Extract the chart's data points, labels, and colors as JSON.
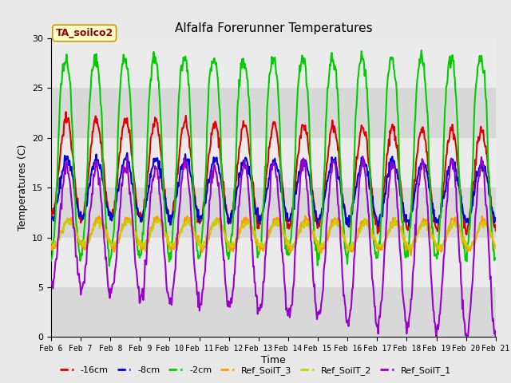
{
  "title": "Alfalfa Forerunner Temperatures",
  "ylabel": "Temperatures (C)",
  "xlabel": "Time",
  "annotation": "TA_soilco2",
  "ylim": [
    0,
    30
  ],
  "fig_bg_color": "#e8e8e8",
  "plot_bg_color": "#e8e8e8",
  "band1_color": "#d8d8d8",
  "band2_color": "#ebebeb",
  "series_colors": {
    "-16cm": "#dd0000",
    "-8cm": "#0000dd",
    "-2cm": "#00cc00",
    "Ref_SoilT_3": "#ff9900",
    "Ref_SoilT_2": "#cccc00",
    "Ref_SoilT_1": "#9900cc"
  },
  "n_days": 15,
  "start_day": 6,
  "yticks": [
    0,
    5,
    10,
    15,
    20,
    25,
    30
  ]
}
